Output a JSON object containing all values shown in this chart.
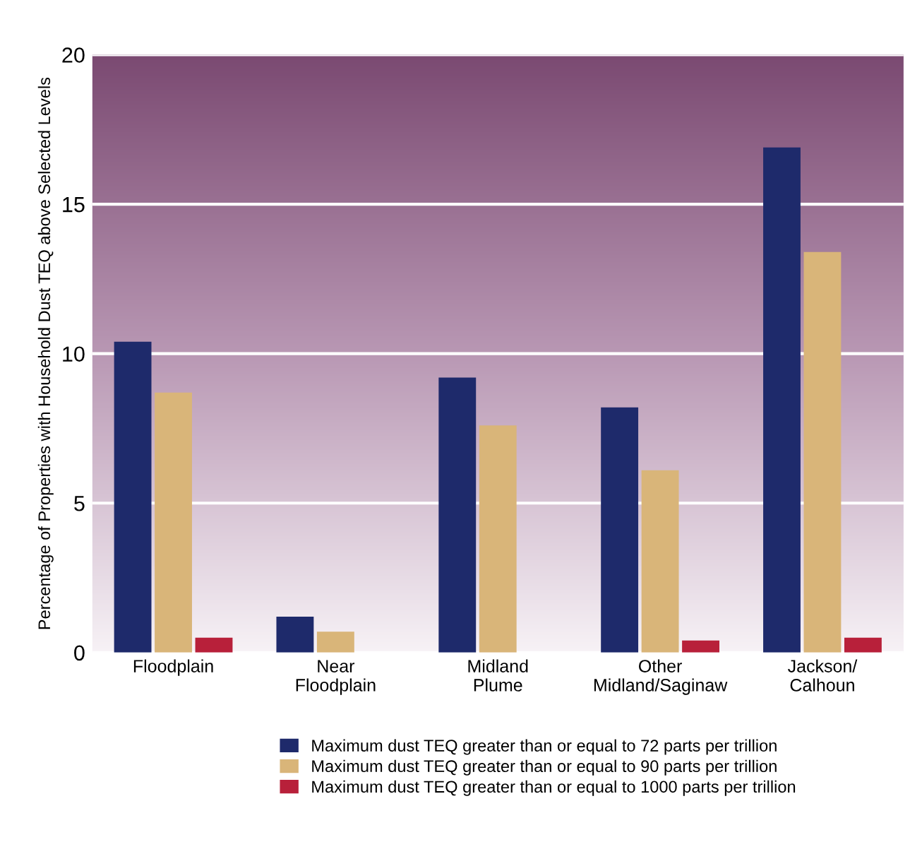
{
  "chart_data": {
    "type": "bar",
    "ylabel": "Percentage of Properties with Household Dust TEQ above Selected Levels",
    "categories": [
      "Floodplain",
      "Near\nFloodplain",
      "Midland\nPlume",
      "Other\nMidland/Saginaw",
      "Jackson/\nCalhoun"
    ],
    "series": [
      {
        "name": "Maximum dust TEQ greater than or equal to 72 parts per trillion",
        "color": "#1e2a6b",
        "values": [
          10.4,
          1.2,
          9.2,
          8.2,
          16.9
        ]
      },
      {
        "name": "Maximum dust TEQ greater than or equal to 90 parts per trillion",
        "color": "#d9b579",
        "values": [
          8.7,
          0.7,
          7.6,
          6.1,
          13.4
        ]
      },
      {
        "name": "Maximum dust TEQ greater than or equal to 1000 parts per trillion",
        "color": "#b8203a",
        "values": [
          0.5,
          0,
          0,
          0.4,
          0.5
        ]
      }
    ],
    "ylim": [
      0,
      20
    ],
    "yticks": [
      0,
      5,
      10,
      15,
      20
    ],
    "grid": "y",
    "legend": "bottom"
  }
}
